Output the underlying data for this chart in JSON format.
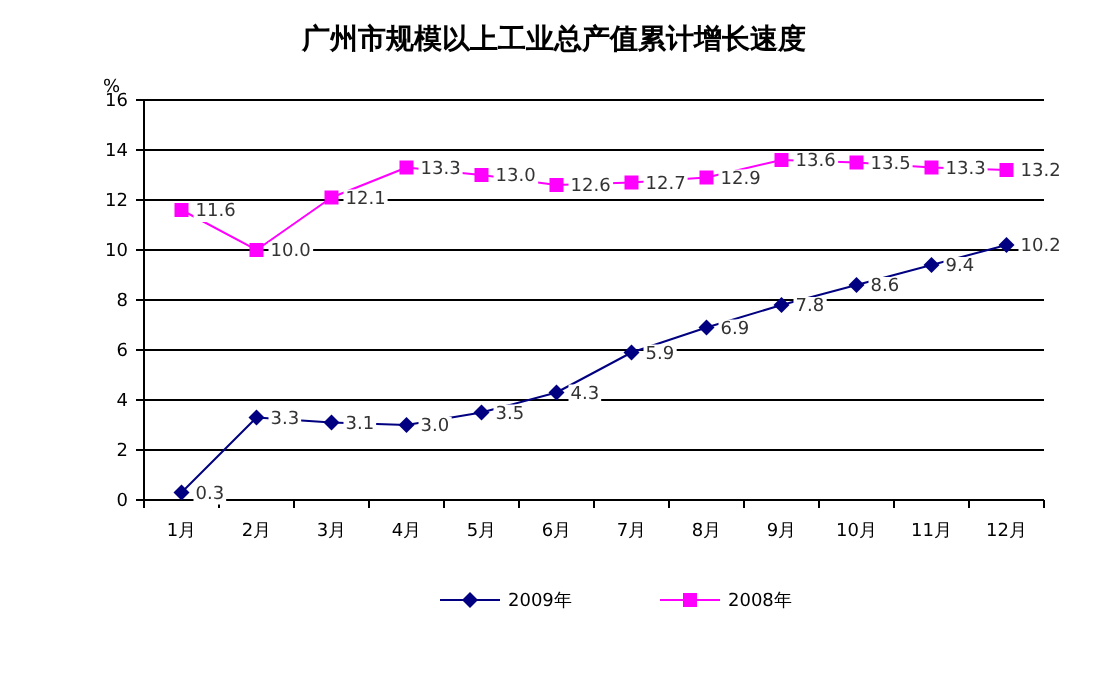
{
  "chart_data": {
    "type": "line",
    "title": "广州市规模以上工业总产值累计增长速度",
    "ylabel": "%",
    "categories": [
      "1月",
      "2月",
      "3月",
      "4月",
      "5月",
      "6月",
      "7月",
      "8月",
      "9月",
      "10月",
      "11月",
      "12月"
    ],
    "series": [
      {
        "name": "2009年",
        "color": "#000080",
        "marker": "diamond",
        "values": [
          0.3,
          3.3,
          3.1,
          3.0,
          3.5,
          4.3,
          5.9,
          6.9,
          7.8,
          8.6,
          9.4,
          10.2
        ],
        "value_labels": [
          "0.3",
          "3.3",
          "3.1",
          "3.0",
          "3.5",
          "4.3",
          "5.9",
          "6.9",
          "7.8",
          "8.6",
          "9.4",
          "10.2"
        ]
      },
      {
        "name": "2008年",
        "color": "#ff00ff",
        "marker": "square",
        "values": [
          11.6,
          10.0,
          12.1,
          13.3,
          13.0,
          12.6,
          12.7,
          12.9,
          13.6,
          13.5,
          13.3,
          13.2
        ],
        "value_labels": [
          "11.6",
          "10.0",
          "12.1",
          "13.3",
          "13.0",
          "12.6",
          "12.7",
          "12.9",
          "13.6",
          "13.5",
          "13.3",
          "13.2"
        ]
      }
    ],
    "ylim": [
      0,
      16
    ],
    "yticks": [
      0,
      2,
      4,
      6,
      8,
      10,
      12,
      14,
      16
    ],
    "grid": "y",
    "legend": "bottom",
    "line_style": "solid"
  }
}
